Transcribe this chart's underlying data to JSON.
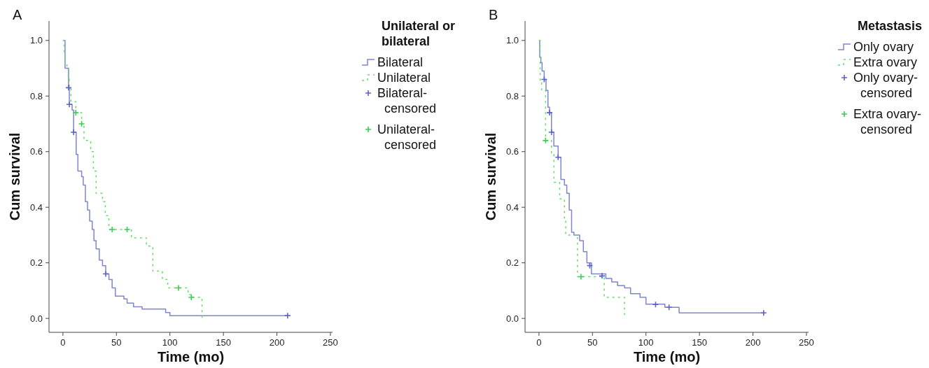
{
  "chart_data": [
    {
      "type": "step",
      "title": "A",
      "xlabel": "Time (mo)",
      "ylabel": "Cum survival",
      "legend_title": "Unilateral or bilateral",
      "legend": "right",
      "xlim": [
        -13,
        252
      ],
      "xticks": [
        0,
        50,
        100,
        150,
        200,
        250
      ],
      "ylim": [
        -0.05,
        1.07
      ],
      "yticks": [
        {
          "value": 0,
          "label": "0.0"
        },
        {
          "value": 0.2,
          "label": "0.2"
        },
        {
          "value": 0.4,
          "label": "0.4"
        },
        {
          "value": 0.6,
          "label": "0.6"
        },
        {
          "value": 0.8,
          "label": "0.8"
        },
        {
          "value": 1,
          "label": "1.0"
        }
      ],
      "series": [
        {
          "name": "Bilateral",
          "color": "#7f85d2",
          "line_style": "solid",
          "x": [
            0,
            2,
            5.3,
            6,
            8.6,
            10,
            12.4,
            14,
            17.5,
            19,
            21,
            23,
            25,
            27.4,
            29,
            31,
            34,
            37,
            40,
            43,
            46,
            49,
            57,
            60,
            66,
            74,
            96,
            100,
            210
          ],
          "values": [
            1.0,
            0.9,
            0.83,
            0.77,
            0.75,
            0.67,
            0.59,
            0.53,
            0.51,
            0.48,
            0.42,
            0.39,
            0.35,
            0.32,
            0.28,
            0.25,
            0.21,
            0.19,
            0.16,
            0.14,
            0.11,
            0.08,
            0.07,
            0.055,
            0.042,
            0.034,
            0.021,
            0.01,
            0.01
          ]
        },
        {
          "name": "Unilateral",
          "color": "#66dd66",
          "line_style": "dashed",
          "x": [
            0,
            1.3,
            2,
            3.8,
            5,
            6,
            7.5,
            12,
            17.5,
            19.7,
            26,
            28.5,
            31,
            37,
            39.6,
            43,
            64,
            78,
            84,
            93,
            98,
            117,
            120,
            130
          ],
          "values": [
            1.0,
            0.95,
            0.92,
            0.9,
            0.87,
            0.83,
            0.78,
            0.74,
            0.7,
            0.64,
            0.6,
            0.53,
            0.45,
            0.42,
            0.37,
            0.32,
            0.29,
            0.26,
            0.17,
            0.14,
            0.11,
            0.085,
            0.076,
            0.0
          ]
        },
        {
          "name": "Bilateral-censored",
          "type": "scatter",
          "marker": "cross",
          "color": "#5c62c8",
          "x": [
            5.3,
            6,
            10,
            40,
            210
          ],
          "values": [
            0.83,
            0.77,
            0.67,
            0.16,
            0.01
          ]
        },
        {
          "name": "Unilateral-censored",
          "type": "scatter",
          "marker": "cross",
          "color": "#3fcc55",
          "x": [
            12,
            17.5,
            46,
            60,
            108,
            120
          ],
          "values": [
            0.74,
            0.7,
            0.32,
            0.32,
            0.11,
            0.076
          ]
        }
      ]
    },
    {
      "type": "step",
      "title": "B",
      "xlabel": "Time (mo)",
      "ylabel": "Cum survival",
      "legend_title": "Metastasis",
      "legend": "right",
      "xlim": [
        -13,
        252
      ],
      "xticks": [
        0,
        50,
        100,
        150,
        200,
        250
      ],
      "ylim": [
        -0.05,
        1.07
      ],
      "yticks": [
        {
          "value": 0,
          "label": "0.0"
        },
        {
          "value": 0.2,
          "label": "0.2"
        },
        {
          "value": 0.4,
          "label": "0.4"
        },
        {
          "value": 0.6,
          "label": "0.6"
        },
        {
          "value": 0.8,
          "label": "0.8"
        },
        {
          "value": 1,
          "label": "1.0"
        }
      ],
      "series": [
        {
          "name": "Only ovary",
          "color": "#7f85d2",
          "line_style": "solid",
          "x": [
            0,
            0.7,
            1.8,
            2.9,
            4.9,
            6.6,
            8.4,
            9.9,
            11.7,
            13.9,
            17.9,
            20.5,
            23.8,
            26,
            28.3,
            30.5,
            32.7,
            38,
            41.5,
            44.8,
            49,
            62.5,
            68,
            73.5,
            80,
            85.6,
            94.5,
            100,
            117.7,
            131,
            210
          ],
          "values": [
            1.0,
            0.94,
            0.92,
            0.89,
            0.86,
            0.82,
            0.76,
            0.74,
            0.67,
            0.62,
            0.58,
            0.5,
            0.48,
            0.45,
            0.39,
            0.31,
            0.3,
            0.28,
            0.24,
            0.2,
            0.16,
            0.144,
            0.131,
            0.118,
            0.11,
            0.089,
            0.076,
            0.051,
            0.04,
            0.02,
            0.02
          ]
        },
        {
          "name": "Extra ovary",
          "color": "#66dd66",
          "line_style": "dashed",
          "x": [
            0,
            1.1,
            2.5,
            6.2,
            11.7,
            14,
            19.4,
            23.8,
            25,
            36,
            61,
            80
          ],
          "values": [
            1.0,
            0.85,
            0.82,
            0.64,
            0.59,
            0.49,
            0.43,
            0.35,
            0.3,
            0.15,
            0.076,
            0.012
          ]
        },
        {
          "name": "Only ovary-censored",
          "type": "scatter",
          "marker": "cross",
          "color": "#5c62c8",
          "x": [
            4.9,
            9.9,
            11.7,
            17.9,
            47.5,
            59,
            109,
            121.6,
            210
          ],
          "values": [
            0.86,
            0.74,
            0.67,
            0.58,
            0.19,
            0.153,
            0.05,
            0.04,
            0.02
          ]
        },
        {
          "name": "Extra ovary-censored",
          "type": "scatter",
          "marker": "cross",
          "color": "#3fcc55",
          "x": [
            6.2,
            39.3
          ],
          "values": [
            0.64,
            0.15
          ]
        }
      ]
    }
  ]
}
